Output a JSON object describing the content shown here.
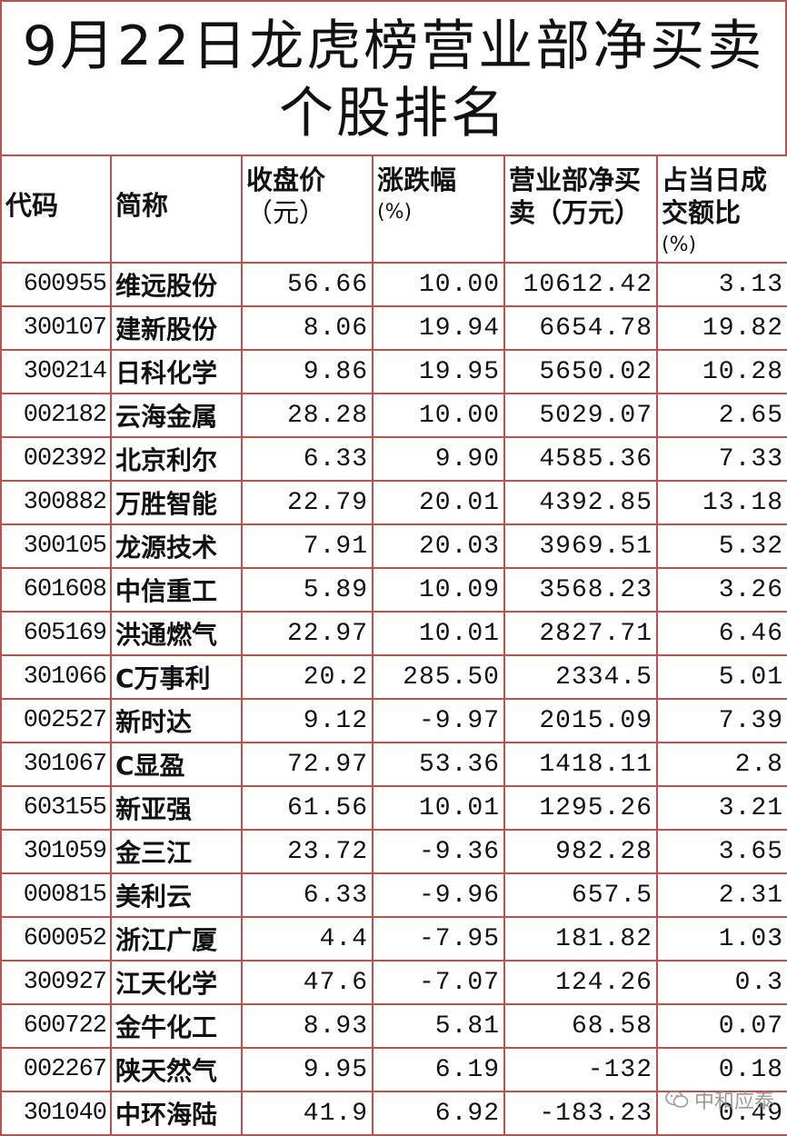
{
  "title": {
    "line1": "9月22日龙虎榜营业部净买卖",
    "line2": "个股排名"
  },
  "headers": {
    "code": "代码",
    "name": "简称",
    "close": "收盘价",
    "close_unit": "（元）",
    "change": "涨跌幅",
    "change_unit": "(%)",
    "net": "营业部净买卖（万元）",
    "ratio": "占当日成交额比",
    "ratio_unit": "(%)"
  },
  "rows": [
    {
      "code": "600955",
      "name": "维远股份",
      "close": "56.66",
      "change": "10.00",
      "net": "10612.42",
      "ratio": "3.13"
    },
    {
      "code": "300107",
      "name": "建新股份",
      "close": "8.06",
      "change": "19.94",
      "net": "6654.78",
      "ratio": "19.82"
    },
    {
      "code": "300214",
      "name": "日科化学",
      "close": "9.86",
      "change": "19.95",
      "net": "5650.02",
      "ratio": "10.28"
    },
    {
      "code": "002182",
      "name": "云海金属",
      "close": "28.28",
      "change": "10.00",
      "net": "5029.07",
      "ratio": "2.65"
    },
    {
      "code": "002392",
      "name": "北京利尔",
      "close": "6.33",
      "change": "9.90",
      "net": "4585.36",
      "ratio": "7.33"
    },
    {
      "code": "300882",
      "name": "万胜智能",
      "close": "22.79",
      "change": "20.01",
      "net": "4392.85",
      "ratio": "13.18"
    },
    {
      "code": "300105",
      "name": "龙源技术",
      "close": "7.91",
      "change": "20.03",
      "net": "3969.51",
      "ratio": "5.32"
    },
    {
      "code": "601608",
      "name": "中信重工",
      "close": "5.89",
      "change": "10.09",
      "net": "3568.23",
      "ratio": "3.26"
    },
    {
      "code": "605169",
      "name": "洪通燃气",
      "close": "22.97",
      "change": "10.01",
      "net": "2827.71",
      "ratio": "6.46"
    },
    {
      "code": "301066",
      "name": "C万事利",
      "close": "20.2",
      "change": "285.50",
      "net": "2334.5",
      "ratio": "5.01"
    },
    {
      "code": "002527",
      "name": "新时达",
      "close": "9.12",
      "change": "-9.97",
      "net": "2015.09",
      "ratio": "7.39"
    },
    {
      "code": "301067",
      "name": "C显盈",
      "close": "72.97",
      "change": "53.36",
      "net": "1418.11",
      "ratio": "2.8"
    },
    {
      "code": "603155",
      "name": "新亚强",
      "close": "61.56",
      "change": "10.01",
      "net": "1295.26",
      "ratio": "3.21"
    },
    {
      "code": "301059",
      "name": "金三江",
      "close": "23.72",
      "change": "-9.36",
      "net": "982.28",
      "ratio": "3.65"
    },
    {
      "code": "000815",
      "name": "美利云",
      "close": "6.33",
      "change": "-9.96",
      "net": "657.5",
      "ratio": "2.31"
    },
    {
      "code": "600052",
      "name": "浙江广厦",
      "close": "4.4",
      "change": "-7.95",
      "net": "181.82",
      "ratio": "1.03"
    },
    {
      "code": "300927",
      "name": "江天化学",
      "close": "47.6",
      "change": "-7.07",
      "net": "124.26",
      "ratio": "0.3"
    },
    {
      "code": "600722",
      "name": "金牛化工",
      "close": "8.93",
      "change": "5.81",
      "net": "68.58",
      "ratio": "0.07"
    },
    {
      "code": "002267",
      "name": "陕天然气",
      "close": "9.95",
      "change": "6.19",
      "net": "-132",
      "ratio": "0.18"
    },
    {
      "code": "301040",
      "name": "中环海陆",
      "close": "41.9",
      "change": "6.92",
      "net": "-183.23",
      "ratio": "0.49"
    }
  ],
  "watermark": {
    "text": "中和应泰",
    "icon": "wechat-icon"
  },
  "colors": {
    "grid": "#c0504d",
    "text": "#111111"
  }
}
